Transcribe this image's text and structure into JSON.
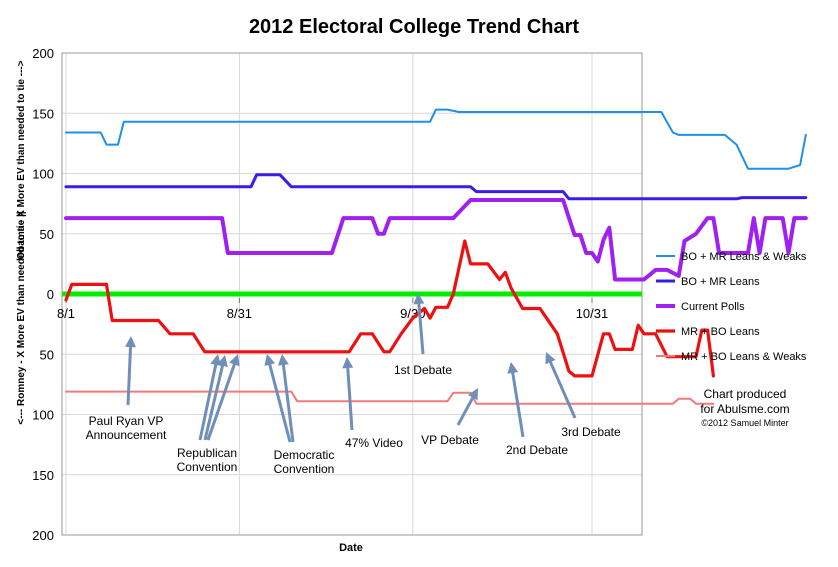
{
  "chart_data": {
    "type": "line",
    "title": "2012 Electoral College Trend Chart",
    "xlabel": "Date",
    "ylabel_left": "<--- Romney - X More EV than needed to tie ||",
    "ylabel_right": "Obama - X More EV than needed to tie --->",
    "x_ticks": [
      "8/1",
      "8/31",
      "9/30",
      "10/31"
    ],
    "y_ticks": [
      "200",
      "150",
      "100",
      "50",
      "0",
      "50",
      "100",
      "150",
      "200"
    ],
    "ylim": [
      -200,
      200
    ],
    "x_start": "8/1",
    "x_end": "11/5",
    "zero_line_color": "#00ee00",
    "series": [
      {
        "name": "BO + MR Leans & Weaks",
        "color": "#1e90e8",
        "points": [
          [
            0,
            134
          ],
          [
            6,
            134
          ],
          [
            7,
            124
          ],
          [
            9,
            124
          ],
          [
            10,
            143
          ],
          [
            63,
            143
          ],
          [
            64,
            153
          ],
          [
            66,
            153
          ],
          [
            68,
            151
          ],
          [
            103,
            151
          ],
          [
            105,
            134
          ],
          [
            106,
            132
          ],
          [
            114,
            132
          ],
          [
            116,
            124
          ],
          [
            118,
            104
          ],
          [
            125,
            104
          ],
          [
            127,
            107
          ],
          [
            128,
            132
          ]
        ]
      },
      {
        "name": "BO + MR Leans",
        "color": "#3a1ee8",
        "points": [
          [
            0,
            89
          ],
          [
            32,
            89
          ],
          [
            33,
            99
          ],
          [
            37,
            99
          ],
          [
            39,
            89
          ],
          [
            70,
            89
          ],
          [
            71,
            85
          ],
          [
            86,
            85
          ],
          [
            87,
            79
          ],
          [
            116,
            79
          ],
          [
            117,
            80
          ],
          [
            128,
            80
          ]
        ]
      },
      {
        "name": "Current Polls",
        "color": "#a020f0",
        "points": [
          [
            0,
            63
          ],
          [
            27,
            63
          ],
          [
            28,
            34
          ],
          [
            46,
            34
          ],
          [
            48,
            63
          ],
          [
            53,
            63
          ],
          [
            54,
            50
          ],
          [
            55,
            50
          ],
          [
            56,
            63
          ],
          [
            67,
            63
          ],
          [
            70,
            78
          ],
          [
            86,
            78
          ],
          [
            88,
            49
          ],
          [
            89,
            49
          ],
          [
            90,
            34
          ],
          [
            91,
            34
          ],
          [
            92,
            27
          ],
          [
            93,
            45
          ],
          [
            94,
            55
          ],
          [
            95,
            12
          ],
          [
            99,
            12
          ],
          [
            100,
            12
          ],
          [
            102,
            20
          ],
          [
            104,
            20
          ],
          [
            106,
            15
          ],
          [
            107,
            44
          ],
          [
            108,
            47
          ],
          [
            109,
            50
          ],
          [
            111,
            63
          ],
          [
            112,
            63
          ],
          [
            113,
            34
          ],
          [
            117,
            34
          ],
          [
            118,
            34
          ],
          [
            119,
            63
          ],
          [
            120,
            34
          ],
          [
            121,
            63
          ],
          [
            124,
            63
          ],
          [
            125,
            34
          ],
          [
            126,
            63
          ],
          [
            128,
            63
          ]
        ]
      },
      {
        "name": "MR + BO Leans",
        "color": "#ee1010",
        "points": [
          [
            0,
            -5
          ],
          [
            1,
            8
          ],
          [
            7,
            8
          ],
          [
            8,
            -22
          ],
          [
            16,
            -22
          ],
          [
            18,
            -33
          ],
          [
            22,
            -33
          ],
          [
            24,
            -48
          ],
          [
            49,
            -48
          ],
          [
            51,
            -33
          ],
          [
            53,
            -33
          ],
          [
            55,
            -48
          ],
          [
            56,
            -48
          ],
          [
            58,
            -33
          ],
          [
            60,
            -20
          ],
          [
            62,
            -12
          ],
          [
            63,
            -20
          ],
          [
            64,
            -11
          ],
          [
            66,
            -11
          ],
          [
            67,
            0
          ],
          [
            69,
            44
          ],
          [
            70,
            25
          ],
          [
            73,
            25
          ],
          [
            75,
            12
          ],
          [
            76,
            18
          ],
          [
            77,
            5
          ],
          [
            79,
            -12
          ],
          [
            82,
            -12
          ],
          [
            85,
            -33
          ],
          [
            87,
            -64
          ],
          [
            88,
            -68
          ],
          [
            91,
            -68
          ],
          [
            93,
            -33
          ],
          [
            94,
            -33
          ],
          [
            95,
            -46
          ],
          [
            98,
            -46
          ],
          [
            99,
            -26
          ],
          [
            100,
            -33
          ],
          [
            102,
            -33
          ],
          [
            104,
            -52
          ],
          [
            106,
            -52
          ],
          [
            108,
            -52
          ],
          [
            109,
            -52
          ],
          [
            110,
            -30
          ],
          [
            111,
            -30
          ],
          [
            112,
            -68
          ]
        ]
      },
      {
        "name": "MR + BO Leans & Weaks",
        "color": "#f07a7a",
        "points": [
          [
            0,
            -81
          ],
          [
            39,
            -81
          ],
          [
            40,
            -89
          ],
          [
            66,
            -89
          ],
          [
            67,
            -82
          ],
          [
            70,
            -82
          ],
          [
            71,
            -91
          ],
          [
            105,
            -91
          ],
          [
            106,
            -87
          ],
          [
            108,
            -87
          ],
          [
            109,
            -91
          ],
          [
            112,
            -91
          ]
        ]
      }
    ],
    "annotations": [
      {
        "lines": [
          "Paul Ryan VP",
          "Announcement"
        ],
        "date": "8/11"
      },
      {
        "lines": [
          "Republican",
          "Convention"
        ],
        "date": "8/27-8/30"
      },
      {
        "lines": [
          "Democratic",
          "Convention"
        ],
        "date": "9/4-9/6"
      },
      {
        "lines": [
          "47% Video"
        ],
        "date": "9/17"
      },
      {
        "lines": [
          "1st Debate"
        ],
        "date": "10/3"
      },
      {
        "lines": [
          "VP Debate"
        ],
        "date": "10/11"
      },
      {
        "lines": [
          "2nd Debate"
        ],
        "date": "10/16"
      },
      {
        "lines": [
          "3rd Debate"
        ],
        "date": "10/22"
      }
    ],
    "credit": [
      "Chart produced",
      "for Abulsme.com",
      "©2012 Samuel Minter"
    ]
  }
}
